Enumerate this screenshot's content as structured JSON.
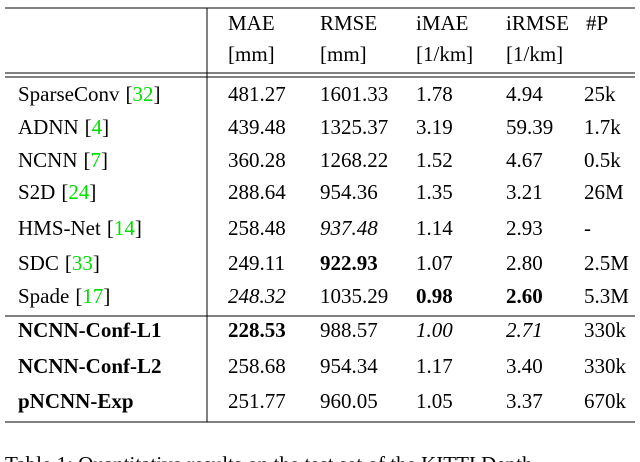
{
  "table": {
    "cite_color": "#00dd00",
    "header": [
      {
        "line1": "MAE",
        "line2": "[mm]"
      },
      {
        "line1": "RMSE",
        "line2": "[mm]"
      },
      {
        "line1": "iMAE",
        "line2": "[1/km]"
      },
      {
        "line1": "iRMSE",
        "line2": "[1/km]"
      },
      {
        "line1": "#P"
      }
    ],
    "rows": [
      {
        "method": "SparseConv",
        "cite": [
          "[",
          "32",
          "]"
        ],
        "cells": [
          "481.27",
          "1601.33",
          "1.78",
          "4.94",
          "25k"
        ]
      },
      {
        "method": "ADNN",
        "cite": [
          "[",
          "4",
          "]"
        ],
        "cells": [
          "439.48",
          "1325.37",
          "3.19",
          "59.39",
          "1.7k"
        ]
      },
      {
        "method": "NCNN",
        "cite": [
          "[",
          "7",
          "]"
        ],
        "cells": [
          "360.28",
          "1268.22",
          "1.52",
          "4.67",
          "0.5k"
        ]
      },
      {
        "method": "S2D",
        "cite": [
          "[",
          "24",
          "]"
        ],
        "cells": [
          "288.64",
          "954.36",
          "1.35",
          "3.21",
          "26M"
        ]
      },
      {
        "method": "HMS-Net",
        "cite": [
          "[",
          "14",
          "]"
        ],
        "cells": [
          "258.48",
          "937.48",
          "1.14",
          "2.93",
          "-"
        ],
        "italic": [
          1
        ]
      },
      {
        "method": "SDC",
        "cite": [
          "[",
          "33",
          "]"
        ],
        "cells": [
          "249.11",
          "922.93",
          "1.07",
          "2.80",
          "2.5M"
        ],
        "bold": [
          1
        ]
      },
      {
        "method": "Spade",
        "cite": [
          "[",
          "17",
          "]"
        ],
        "cells": [
          "248.32",
          "1035.29",
          "0.98",
          "2.60",
          "5.3M"
        ],
        "italic": [
          0
        ],
        "bold": [
          2,
          3
        ]
      },
      {
        "method": "NCNN-Conf-L1",
        "method_bold": true,
        "cells": [
          "228.53",
          "988.57",
          "1.00",
          "2.71",
          "330k"
        ],
        "bold": [
          0
        ],
        "italic": [
          2,
          3
        ]
      },
      {
        "method": "NCNN-Conf-L2",
        "method_bold": true,
        "cells": [
          "258.68",
          "954.34",
          "1.17",
          "3.40",
          "330k"
        ]
      },
      {
        "method": "pNCNN-Exp",
        "method_bold": true,
        "cells": [
          "251.77",
          "960.05",
          "1.05",
          "3.37",
          "670k"
        ]
      }
    ]
  },
  "caption": "Table 1: Quantitative results on the test set of the KITTI Depth"
}
